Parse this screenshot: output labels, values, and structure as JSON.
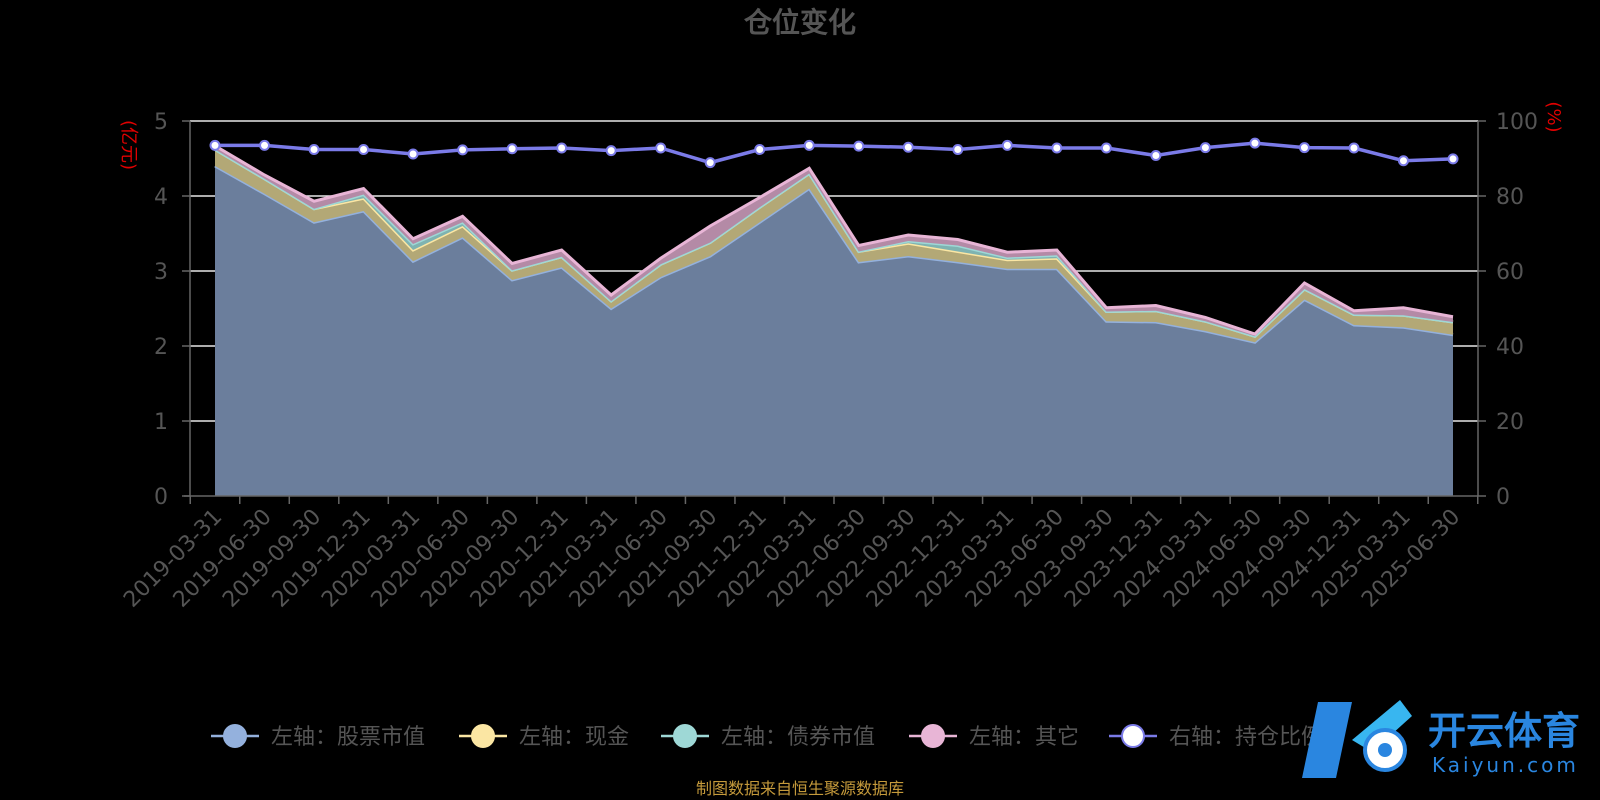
{
  "chart_data": {
    "type": "area",
    "title": "仓位变化",
    "y_left_unit": "(亿元)",
    "y_right_unit": "(%)",
    "y_left_ticks": [
      "0",
      "1",
      "2",
      "3",
      "4",
      "5"
    ],
    "y_right_ticks": [
      "0",
      "20",
      "40",
      "60",
      "80",
      "100"
    ],
    "ylim_left": [
      0,
      5
    ],
    "ylim_right": [
      0,
      100
    ],
    "grid": true,
    "categories": [
      "2019-03-31",
      "2019-06-30",
      "2019-09-30",
      "2019-12-31",
      "2020-03-31",
      "2020-06-30",
      "2020-09-30",
      "2020-12-31",
      "2021-03-31",
      "2021-06-30",
      "2021-09-30",
      "2021-12-31",
      "2022-03-31",
      "2022-06-30",
      "2022-09-30",
      "2022-12-31",
      "2023-03-31",
      "2023-06-30",
      "2023-09-30",
      "2023-12-31",
      "2024-03-31",
      "2024-06-30",
      "2024-09-30",
      "2024-12-31",
      "2025-03-31",
      "2025-06-30"
    ],
    "stacked": true,
    "legend_position": "bottom",
    "series": [
      {
        "name": "左轴：股票市值",
        "axis": "left",
        "color": "#94b1dd",
        "values": [
          4.4,
          4.03,
          3.65,
          3.8,
          3.13,
          3.45,
          2.88,
          3.05,
          2.5,
          2.92,
          3.2,
          3.65,
          4.1,
          3.12,
          3.2,
          3.12,
          3.03,
          3.03,
          2.33,
          2.32,
          2.2,
          2.05,
          2.62,
          2.28,
          2.25,
          2.15
        ]
      },
      {
        "name": "左轴：现金",
        "axis": "left",
        "color": "#fbe6a3",
        "values": [
          0.22,
          0.2,
          0.18,
          0.17,
          0.15,
          0.15,
          0.13,
          0.14,
          0.1,
          0.17,
          0.18,
          0.2,
          0.2,
          0.14,
          0.17,
          0.14,
          0.12,
          0.14,
          0.13,
          0.15,
          0.13,
          0.08,
          0.14,
          0.14,
          0.16,
          0.17
        ]
      },
      {
        "name": "左轴：债券市值",
        "axis": "left",
        "color": "#9ed8d6",
        "values": [
          0.0,
          0.0,
          0.0,
          0.05,
          0.08,
          0.05,
          0.0,
          0.0,
          0.0,
          0.0,
          0.0,
          0.0,
          0.0,
          0.0,
          0.03,
          0.08,
          0.03,
          0.04,
          0.0,
          0.0,
          0.0,
          0.0,
          0.0,
          0.0,
          0.0,
          0.0
        ]
      },
      {
        "name": "左轴：其它",
        "axis": "left",
        "color": "#e8b5d6",
        "values": [
          0.05,
          0.05,
          0.1,
          0.08,
          0.07,
          0.08,
          0.09,
          0.09,
          0.08,
          0.08,
          0.22,
          0.13,
          0.07,
          0.08,
          0.08,
          0.08,
          0.07,
          0.07,
          0.05,
          0.07,
          0.05,
          0.03,
          0.08,
          0.05,
          0.1,
          0.07
        ]
      },
      {
        "name": "右轴：持仓比例",
        "axis": "right",
        "color": "#7b7be8",
        "type": "line",
        "values": [
          93.5,
          93.5,
          92.4,
          92.4,
          91.2,
          92.3,
          92.6,
          92.8,
          92.1,
          92.8,
          88.9,
          92.4,
          93.5,
          93.3,
          93.0,
          92.4,
          93.5,
          92.8,
          92.8,
          90.8,
          92.9,
          94.1,
          92.9,
          92.8,
          89.4,
          89.9
        ]
      }
    ]
  },
  "source_note": "制图数据来自恒生聚源数据库",
  "watermark": {
    "text": "开云体育",
    "sub": "Kaiyun.com"
  }
}
